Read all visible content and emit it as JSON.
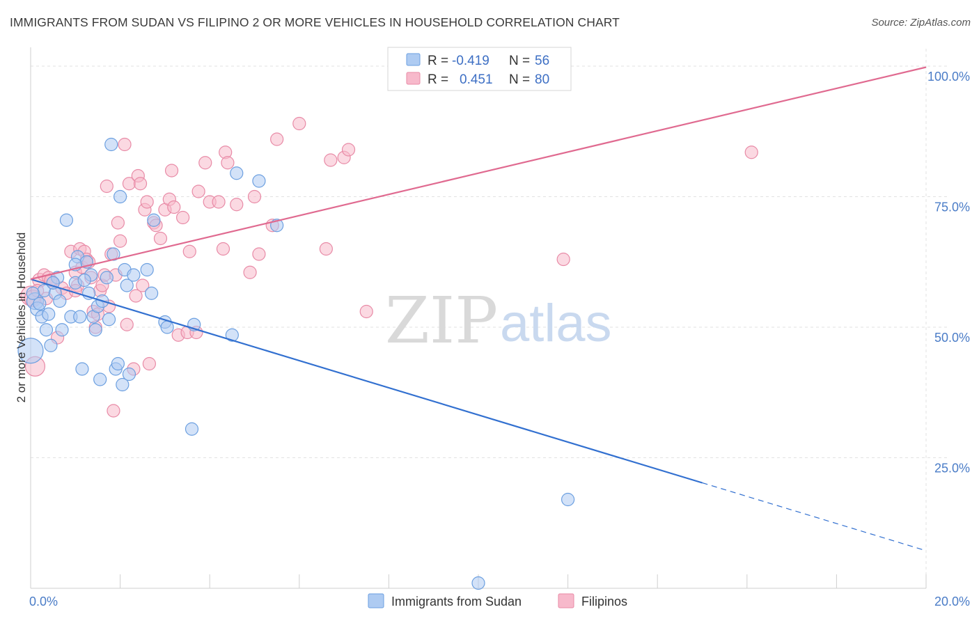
{
  "title": "IMMIGRANTS FROM SUDAN VS FILIPINO 2 OR MORE VEHICLES IN HOUSEHOLD CORRELATION CHART",
  "source": "Source: ZipAtlas.com",
  "watermark": {
    "zip": "ZIP",
    "atlas": "atlas"
  },
  "colors": {
    "sudan_fill": "#aecbf2",
    "sudan_stroke": "#6b9fe0",
    "sudan_line": "#3270d0",
    "filipino_fill": "#f7b9cb",
    "filipino_stroke": "#e88aa6",
    "filipino_line": "#e06a90",
    "grid": "#e2e2e2",
    "tick_text": "#4a7cc7"
  },
  "legend": {
    "rows": [
      {
        "r_label": "R =",
        "r_value": "-0.419",
        "n_label": "N =",
        "n_value": "56"
      },
      {
        "r_label": "R =",
        "r_value": "0.451",
        "n_label": "N =",
        "n_value": "80"
      }
    ]
  },
  "chart_data": {
    "type": "scatter",
    "title": "IMMIGRANTS FROM SUDAN VS FILIPINO 2 OR MORE VEHICLES IN HOUSEHOLD CORRELATION CHART",
    "xlabel": "",
    "ylabel": "2 or more Vehicles in Household",
    "xlim": [
      0,
      20
    ],
    "ylim": [
      0,
      102
    ],
    "x_ticks": [
      {
        "value": 0,
        "label": "0.0%"
      },
      {
        "value": 20,
        "label": "20.0%"
      }
    ],
    "y_ticks": [
      {
        "value": 100,
        "label": "100.0%"
      },
      {
        "value": 75,
        "label": "75.0%"
      },
      {
        "value": 50,
        "label": "50.0%"
      },
      {
        "value": 25,
        "label": "25.0%"
      }
    ],
    "grid": true,
    "legend_position": "top-center",
    "series": [
      {
        "name": "Immigrants from Sudan",
        "trend": {
          "x0": 0,
          "y0": 59.2,
          "x1": 15,
          "y1": 20.2,
          "dash_to_x": 20,
          "dash_to_y": 7.2
        },
        "points": [
          [
            0.0,
            45.5,
            18
          ],
          [
            0.1,
            55.0,
            12
          ],
          [
            0.15,
            53.5,
            10
          ],
          [
            0.25,
            52.0,
            9
          ],
          [
            0.3,
            57.0,
            9
          ],
          [
            0.35,
            49.5,
            9
          ],
          [
            0.45,
            46.5,
            9
          ],
          [
            0.55,
            56.5,
            9
          ],
          [
            0.6,
            59.5,
            9
          ],
          [
            0.7,
            49.5,
            9
          ],
          [
            0.8,
            70.5,
            9
          ],
          [
            0.9,
            52.0,
            9
          ],
          [
            1.0,
            58.5,
            9
          ],
          [
            1.05,
            63.5,
            9
          ],
          [
            1.1,
            52.0,
            9
          ],
          [
            1.15,
            42.0,
            9
          ],
          [
            1.25,
            62.5,
            9
          ],
          [
            1.3,
            56.5,
            9
          ],
          [
            1.35,
            60.0,
            9
          ],
          [
            1.4,
            52.0,
            9
          ],
          [
            1.45,
            49.5,
            9
          ],
          [
            1.5,
            54.0,
            9
          ],
          [
            1.55,
            40.0,
            9
          ],
          [
            1.6,
            55.0,
            9
          ],
          [
            1.7,
            59.5,
            9
          ],
          [
            1.75,
            51.5,
            9
          ],
          [
            1.8,
            85.0,
            9
          ],
          [
            1.85,
            64.0,
            9
          ],
          [
            1.9,
            42.0,
            9
          ],
          [
            1.95,
            43.0,
            9
          ],
          [
            2.0,
            75.0,
            9
          ],
          [
            2.05,
            39.0,
            9
          ],
          [
            2.1,
            61.0,
            9
          ],
          [
            2.15,
            58.0,
            9
          ],
          [
            2.2,
            41.0,
            9
          ],
          [
            2.6,
            61.0,
            9
          ],
          [
            2.7,
            56.5,
            9
          ],
          [
            2.75,
            70.5,
            9
          ],
          [
            3.0,
            51.0,
            9
          ],
          [
            3.05,
            50.0,
            9
          ],
          [
            3.6,
            30.5,
            9
          ],
          [
            3.65,
            50.5,
            9
          ],
          [
            4.5,
            48.5,
            9
          ],
          [
            4.6,
            79.5,
            9
          ],
          [
            5.1,
            78.0,
            9
          ],
          [
            5.5,
            69.5,
            9
          ],
          [
            12.0,
            17.0,
            9
          ],
          [
            10.0,
            1.0,
            9
          ],
          [
            0.2,
            54.5,
            9
          ],
          [
            0.5,
            58.5,
            9
          ],
          [
            0.4,
            52.5,
            9
          ],
          [
            1.0,
            62.0,
            9
          ],
          [
            2.3,
            60.0,
            9
          ],
          [
            0.65,
            55.0,
            9
          ],
          [
            1.2,
            59.0,
            9
          ],
          [
            0.05,
            56.5,
            9
          ]
        ]
      },
      {
        "name": "Filipinos",
        "trend": {
          "x0": 0,
          "y0": 59.2,
          "x1": 20,
          "y1": 99.8
        },
        "points": [
          [
            0.0,
            56.0,
            14
          ],
          [
            0.05,
            55.5,
            12
          ],
          [
            0.1,
            42.5,
            14
          ],
          [
            0.2,
            59.0,
            10
          ],
          [
            0.3,
            60.0,
            9
          ],
          [
            0.4,
            59.5,
            9
          ],
          [
            0.5,
            58.5,
            9
          ],
          [
            0.6,
            48.0,
            9
          ],
          [
            0.7,
            57.5,
            9
          ],
          [
            0.8,
            56.5,
            9
          ],
          [
            0.9,
            64.5,
            9
          ],
          [
            1.0,
            60.5,
            9
          ],
          [
            1.05,
            58.0,
            9
          ],
          [
            1.1,
            65.0,
            9
          ],
          [
            1.15,
            61.5,
            9
          ],
          [
            1.2,
            64.5,
            9
          ],
          [
            1.25,
            63.0,
            9
          ],
          [
            1.3,
            62.5,
            9
          ],
          [
            1.35,
            59.5,
            9
          ],
          [
            1.4,
            53.0,
            9
          ],
          [
            1.45,
            50.0,
            9
          ],
          [
            1.5,
            52.5,
            9
          ],
          [
            1.55,
            57.0,
            9
          ],
          [
            1.6,
            58.0,
            9
          ],
          [
            1.65,
            60.0,
            9
          ],
          [
            1.7,
            77.0,
            9
          ],
          [
            1.75,
            54.0,
            9
          ],
          [
            1.8,
            64.0,
            9
          ],
          [
            1.85,
            34.0,
            9
          ],
          [
            1.9,
            60.0,
            9
          ],
          [
            1.95,
            70.0,
            9
          ],
          [
            2.0,
            66.5,
            9
          ],
          [
            2.1,
            85.0,
            9
          ],
          [
            2.15,
            50.5,
            9
          ],
          [
            2.2,
            77.5,
            9
          ],
          [
            2.3,
            42.0,
            9
          ],
          [
            2.35,
            56.0,
            9
          ],
          [
            2.4,
            79.0,
            9
          ],
          [
            2.45,
            77.5,
            9
          ],
          [
            2.55,
            72.5,
            9
          ],
          [
            2.6,
            74.0,
            9
          ],
          [
            2.65,
            43.0,
            9
          ],
          [
            2.75,
            70.0,
            9
          ],
          [
            2.8,
            69.5,
            9
          ],
          [
            2.9,
            67.0,
            9
          ],
          [
            3.0,
            72.5,
            9
          ],
          [
            3.1,
            74.5,
            9
          ],
          [
            3.15,
            80.0,
            9
          ],
          [
            3.3,
            48.5,
            9
          ],
          [
            3.4,
            71.0,
            9
          ],
          [
            3.5,
            49.0,
            9
          ],
          [
            3.55,
            64.5,
            9
          ],
          [
            3.7,
            49.0,
            9
          ],
          [
            3.75,
            76.0,
            9
          ],
          [
            3.9,
            81.5,
            9
          ],
          [
            4.0,
            74.0,
            9
          ],
          [
            4.2,
            74.0,
            9
          ],
          [
            4.3,
            65.0,
            9
          ],
          [
            4.35,
            83.5,
            9
          ],
          [
            4.4,
            81.5,
            9
          ],
          [
            4.6,
            73.5,
            9
          ],
          [
            4.9,
            60.5,
            9
          ],
          [
            5.0,
            75.0,
            9
          ],
          [
            5.1,
            64.0,
            9
          ],
          [
            5.4,
            69.5,
            9
          ],
          [
            5.5,
            86.0,
            9
          ],
          [
            6.0,
            89.0,
            9
          ],
          [
            6.6,
            65.0,
            9
          ],
          [
            6.7,
            82.0,
            9
          ],
          [
            7.0,
            82.5,
            9
          ],
          [
            7.1,
            84.0,
            9
          ],
          [
            7.5,
            53.0,
            9
          ],
          [
            11.9,
            63.0,
            9
          ],
          [
            16.1,
            83.5,
            9
          ],
          [
            0.35,
            55.5,
            9
          ],
          [
            0.45,
            59.0,
            9
          ],
          [
            1.0,
            57.0,
            9
          ],
          [
            2.5,
            58.0,
            9
          ],
          [
            3.2,
            73.0,
            9
          ],
          [
            0.15,
            57.0,
            9
          ]
        ]
      }
    ]
  }
}
